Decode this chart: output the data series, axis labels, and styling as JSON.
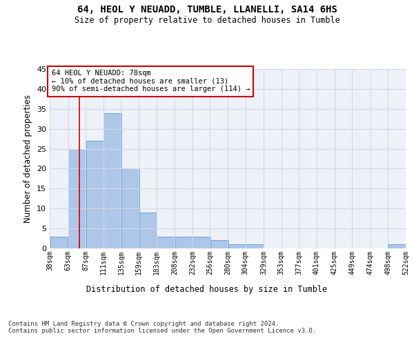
{
  "title1": "64, HEOL Y NEUADD, TUMBLE, LLANELLI, SA14 6HS",
  "title2": "Size of property relative to detached houses in Tumble",
  "xlabel": "Distribution of detached houses by size in Tumble",
  "ylabel": "Number of detached properties",
  "footer": "Contains HM Land Registry data © Crown copyright and database right 2024.\nContains public sector information licensed under the Open Government Licence v3.0.",
  "bin_labels": [
    "38sqm",
    "63sqm",
    "87sqm",
    "111sqm",
    "135sqm",
    "159sqm",
    "183sqm",
    "208sqm",
    "232sqm",
    "256sqm",
    "280sqm",
    "304sqm",
    "329sqm",
    "353sqm",
    "377sqm",
    "401sqm",
    "425sqm",
    "449sqm",
    "474sqm",
    "498sqm",
    "522sqm"
  ],
  "bin_edges": [
    38,
    63,
    87,
    111,
    135,
    159,
    183,
    208,
    232,
    256,
    280,
    304,
    329,
    353,
    377,
    401,
    425,
    449,
    474,
    498,
    522
  ],
  "bar_heights": [
    3,
    25,
    27,
    34,
    20,
    9,
    3,
    3,
    3,
    2,
    1,
    1,
    0,
    0,
    0,
    0,
    0,
    0,
    0,
    1,
    0
  ],
  "bar_color": "#aec6e8",
  "bar_edgecolor": "#5a9fd4",
  "grid_color": "#d0d8e8",
  "background_color": "#eef2f8",
  "red_line_x": 78,
  "annotation_text": "64 HEOL Y NEUADD: 78sqm\n← 10% of detached houses are smaller (13)\n90% of semi-detached houses are larger (114) →",
  "annotation_box_color": "#ffffff",
  "annotation_border_color": "#cc0000",
  "ylim": [
    0,
    45
  ],
  "yticks": [
    0,
    5,
    10,
    15,
    20,
    25,
    30,
    35,
    40,
    45
  ]
}
